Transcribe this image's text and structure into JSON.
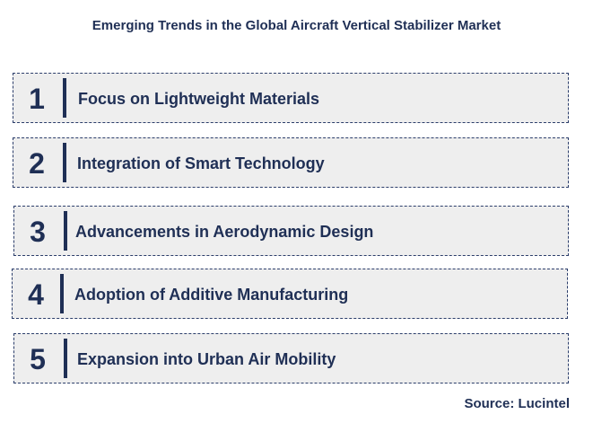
{
  "title": "Emerging Trends in the Global Aircraft Vertical Stabilizer Market",
  "trends": [
    {
      "number": "1",
      "label": "Focus on Lightweight Materials"
    },
    {
      "number": "2",
      "label": "Integration of Smart Technology"
    },
    {
      "number": "3",
      "label": "Advancements in Aerodynamic Design"
    },
    {
      "number": "4",
      "label": "Adoption of Additive Manufacturing"
    },
    {
      "number": "5",
      "label": "Expansion into Urban Air Mobility"
    }
  ],
  "source": "Source: Lucintel",
  "colors": {
    "text": "#1f2f55",
    "row_background": "#eeeeee",
    "border": "#2c3e6b"
  }
}
